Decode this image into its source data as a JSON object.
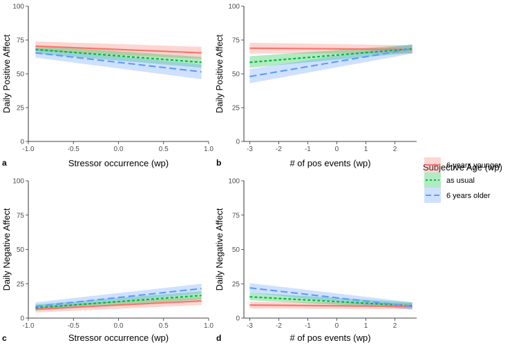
{
  "legend": {
    "title": "Subjective Age (wp)",
    "entries": [
      {
        "label": "6 years younger",
        "line_color": "#f8766d",
        "band_color": "#f8766d",
        "dash": "solid"
      },
      {
        "label": "as usual",
        "line_color": "#00ba38",
        "band_color": "#00ba38",
        "dash": "dotted"
      },
      {
        "label": "6 years older",
        "line_color": "#619cff",
        "band_color": "#619cff",
        "dash": "dashed"
      }
    ]
  },
  "chart_data": [
    {
      "panel": "a",
      "type": "line",
      "xlabel": "Stressor occurrence (wp)",
      "ylabel": "Daily Positive Affect",
      "xlim": [
        -1.0,
        1.0
      ],
      "ylim": [
        0,
        100
      ],
      "xticks": [
        -1.0,
        -0.5,
        0.0,
        0.5,
        1.0
      ],
      "xtick_labels": [
        "-1.0",
        "-0.5",
        "0.0",
        "0.5",
        "1.0"
      ],
      "yticks": [
        0,
        25,
        50,
        75,
        100
      ],
      "ytick_labels": [
        "0",
        "25",
        "50",
        "75",
        "100"
      ],
      "series": [
        {
          "name": "6 years younger",
          "x": [
            -0.92,
            0.92
          ],
          "y": [
            70.5,
            65.5
          ],
          "lower": [
            67,
            61
          ],
          "upper": [
            74,
            70
          ]
        },
        {
          "name": "as usual",
          "x": [
            -0.92,
            0.92
          ],
          "y": [
            68,
            58.5
          ],
          "lower": [
            65,
            54.5
          ],
          "upper": [
            71,
            62.5
          ]
        },
        {
          "name": "6 years older",
          "x": [
            -0.92,
            0.92
          ],
          "y": [
            65.5,
            51.5
          ],
          "lower": [
            62,
            46
          ],
          "upper": [
            69,
            57
          ]
        }
      ]
    },
    {
      "panel": "b",
      "type": "line",
      "xlabel": "# of pos events (wp)",
      "ylabel": "Daily Positive Affect",
      "xlim": [
        -3.2,
        2.75
      ],
      "ylim": [
        0,
        100
      ],
      "xticks": [
        -3,
        -2,
        -1,
        0,
        1,
        2
      ],
      "xtick_labels": [
        "-3",
        "-2",
        "-1",
        "0",
        "1",
        "2"
      ],
      "yticks": [
        0,
        25,
        50,
        75,
        100
      ],
      "ytick_labels": [
        "0",
        "25",
        "50",
        "75",
        "100"
      ],
      "series": [
        {
          "name": "6 years younger",
          "x": [
            -3,
            2.6
          ],
          "y": [
            69,
            68
          ],
          "lower": [
            65,
            65
          ],
          "upper": [
            73,
            71
          ]
        },
        {
          "name": "as usual",
          "x": [
            -3,
            2.6
          ],
          "y": [
            58.5,
            68.5
          ],
          "lower": [
            54.5,
            65.5
          ],
          "upper": [
            63,
            71.5
          ]
        },
        {
          "name": "6 years older",
          "x": [
            -3,
            2.6
          ],
          "y": [
            48,
            68.5
          ],
          "lower": [
            43,
            65
          ],
          "upper": [
            53.5,
            72
          ]
        }
      ]
    },
    {
      "panel": "c",
      "type": "line",
      "xlabel": "Stressor occurrence (wp)",
      "ylabel": "Daily Negative Affect",
      "xlim": [
        -1.0,
        1.0
      ],
      "ylim": [
        0,
        100
      ],
      "xticks": [
        -1.0,
        -0.5,
        0.0,
        0.5,
        1.0
      ],
      "xtick_labels": [
        "-1.0",
        "-0.5",
        "0.0",
        "0.5",
        "1.0"
      ],
      "yticks": [
        0,
        25,
        50,
        75,
        100
      ],
      "ytick_labels": [
        "0",
        "25",
        "50",
        "75",
        "100"
      ],
      "series": [
        {
          "name": "6 years younger",
          "x": [
            -0.92,
            0.92
          ],
          "y": [
            6.5,
            12.5
          ],
          "lower": [
            4,
            9.5
          ],
          "upper": [
            9,
            15.5
          ]
        },
        {
          "name": "as usual",
          "x": [
            -0.92,
            0.92
          ],
          "y": [
            7.5,
            16.5
          ],
          "lower": [
            5.5,
            13.5
          ],
          "upper": [
            10,
            19.5
          ]
        },
        {
          "name": "6 years older",
          "x": [
            -0.92,
            0.92
          ],
          "y": [
            8.5,
            21.5
          ],
          "lower": [
            6,
            18
          ],
          "upper": [
            11.5,
            25
          ]
        }
      ]
    },
    {
      "panel": "d",
      "type": "line",
      "xlabel": "# of pos events (wp)",
      "ylabel": "Daily Negative Affect",
      "xlim": [
        -3.2,
        2.75
      ],
      "ylim": [
        0,
        100
      ],
      "xticks": [
        -3,
        -2,
        -1,
        0,
        1,
        2
      ],
      "xtick_labels": [
        "-3",
        "-2",
        "-1",
        "0",
        "1",
        "2"
      ],
      "yticks": [
        0,
        25,
        50,
        75,
        100
      ],
      "ytick_labels": [
        "0",
        "25",
        "50",
        "75",
        "100"
      ],
      "series": [
        {
          "name": "6 years younger",
          "x": [
            -3,
            2.6
          ],
          "y": [
            9.5,
            8.5
          ],
          "lower": [
            7,
            6.5
          ],
          "upper": [
            12,
            11
          ]
        },
        {
          "name": "as usual",
          "x": [
            -3,
            2.6
          ],
          "y": [
            15.5,
            9
          ],
          "lower": [
            13,
            7
          ],
          "upper": [
            18.5,
            11.5
          ]
        },
        {
          "name": "6 years older",
          "x": [
            -3,
            2.6
          ],
          "y": [
            22,
            8.5
          ],
          "lower": [
            18.5,
            6
          ],
          "upper": [
            25.5,
            11.5
          ]
        }
      ]
    }
  ]
}
